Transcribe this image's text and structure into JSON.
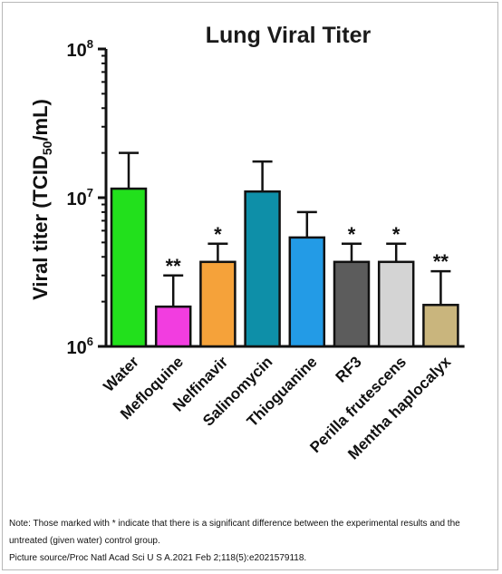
{
  "chart_data": {
    "type": "bar",
    "title": "Lung Viral Titer",
    "ylabel_main": "Viral titer (TCID",
    "ylabel_sub": "50",
    "ylabel_end": "/mL)",
    "yscale": "log",
    "ylim": [
      1000000,
      100000000
    ],
    "ytick_base": "10",
    "yticks": [
      {
        "value": 1000000,
        "exp": "6"
      },
      {
        "value": 10000000,
        "exp": "7"
      },
      {
        "value": 100000000,
        "exp": "8"
      }
    ],
    "grid": false,
    "categories": [
      "Water",
      "Mefloquine",
      "Nelfinavir",
      "Salinomycin",
      "Thioguanine",
      "RF3",
      "Perilla frutescens",
      "Mentha haplocalyx"
    ],
    "values": [
      11500000,
      1850000,
      3700000,
      11000000,
      5400000,
      3700000,
      3700000,
      1900000
    ],
    "errors_upper": [
      20000000,
      3000000,
      4900000,
      17500000,
      8000000,
      4900000,
      4900000,
      3200000
    ],
    "significance": [
      "",
      "**",
      "*",
      "",
      "",
      "*",
      "*",
      "**"
    ],
    "colors": [
      "#22e01c",
      "#f23de0",
      "#f5a23a",
      "#0e8fa8",
      "#239be6",
      "#5c5c5c",
      "#d4d4d4",
      "#c9b57d"
    ]
  },
  "note": {
    "line1": "Note: Those marked with * indicate that there is a significant difference between the experimental results and the",
    "line2": "untreated (given water) control group.",
    "line3": "Picture source/Proc Natl Acad Sci U S A.2021 Feb 2;118(5):e2021579118."
  }
}
